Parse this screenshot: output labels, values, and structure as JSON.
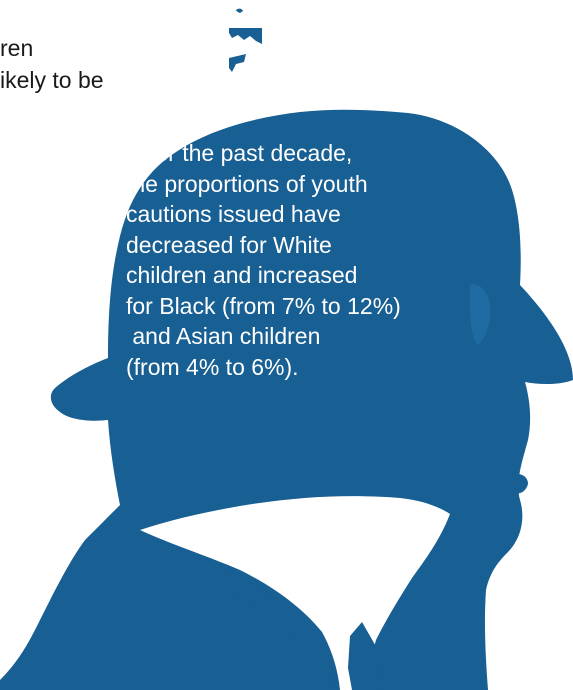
{
  "corner_text": {
    "lines": [
      "ren",
      "ikely to be"
    ]
  },
  "callout": {
    "lines": [
      "Over the past decade,",
      "the proportions of youth",
      "cautions issued have",
      "decreased for White",
      "children and increased",
      "for Black (from 7% to 12%)",
      " and Asian children",
      "(from 4% to 6%)."
    ]
  },
  "colors": {
    "silhouette": "#185f93",
    "background": "#ffffff",
    "callout_text": "#ffffff",
    "corner_text": "#1a1a1a"
  },
  "icons": {
    "silhouette": "detective-head-silhouette-icon"
  }
}
